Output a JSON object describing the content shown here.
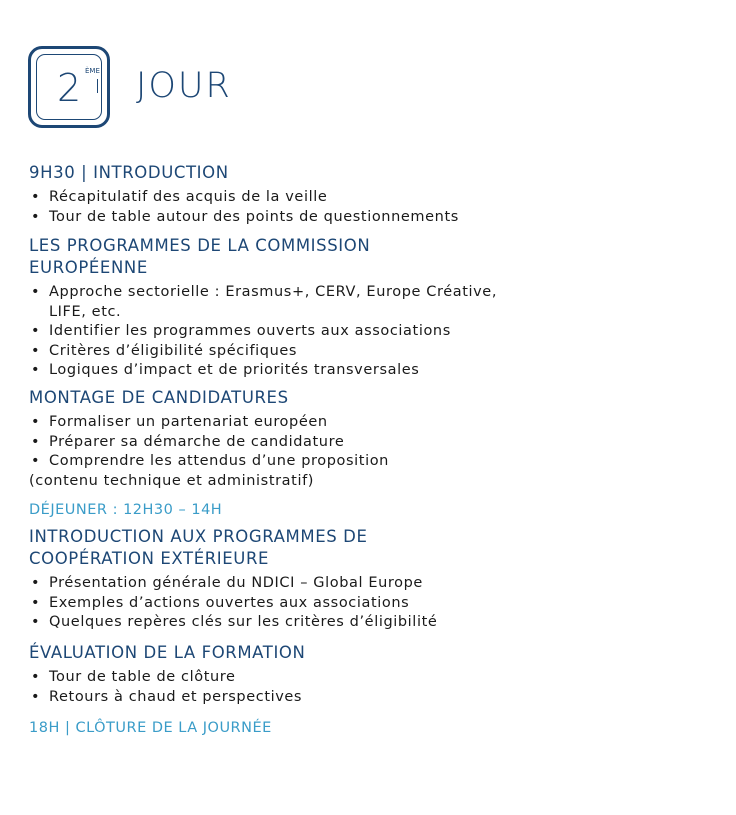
{
  "header": {
    "day_number": "2",
    "day_suffix": "ÈME",
    "title": "JOUR"
  },
  "sections": [
    {
      "heading": "9H30 | INTRODUCTION",
      "items": [
        "Récapitulatif des acquis de la veille",
        "Tour de table autour des points de questionnements"
      ]
    },
    {
      "heading_lines": [
        "LES PROGRAMMES DE LA COMMISSION",
        "EUROPÉENNE"
      ],
      "items": [
        "Approche sectorielle : Erasmus+, CERV, Europe Créative,",
        "LIFE, etc.",
        "Identifier les programmes ouverts aux associations",
        "Critères d’éligibilité spécifiques",
        "Logiques d’impact et de priorités transversales"
      ]
    },
    {
      "heading": "MONTAGE DE CANDIDATURES",
      "items": [
        "Formaliser un partenariat européen",
        "Préparer sa démarche de candidature",
        "Comprendre les attendus d’une proposition"
      ],
      "note": "(contenu technique et administratif)"
    },
    {
      "break": "DÉJEUNER : 12H30 – 14H"
    },
    {
      "heading_lines": [
        "INTRODUCTION AUX PROGRAMMES DE",
        "COOPÉRATION EXTÉRIEURE"
      ],
      "items": [
        "Présentation générale du NDICI – Global Europe",
        "Exemples d’actions ouvertes aux associations",
        "Quelques repères clés sur les critères d’éligibilité"
      ]
    },
    {
      "heading": "ÉVALUATION DE LA FORMATION",
      "items": [
        "Tour de table de clôture",
        "Retours à chaud et perspectives"
      ]
    },
    {
      "closing": "18H | CLÔTURE DE LA JOURNÉE"
    }
  ],
  "colors": {
    "primary": "#1d4775",
    "accent": "#3a9cc8"
  }
}
